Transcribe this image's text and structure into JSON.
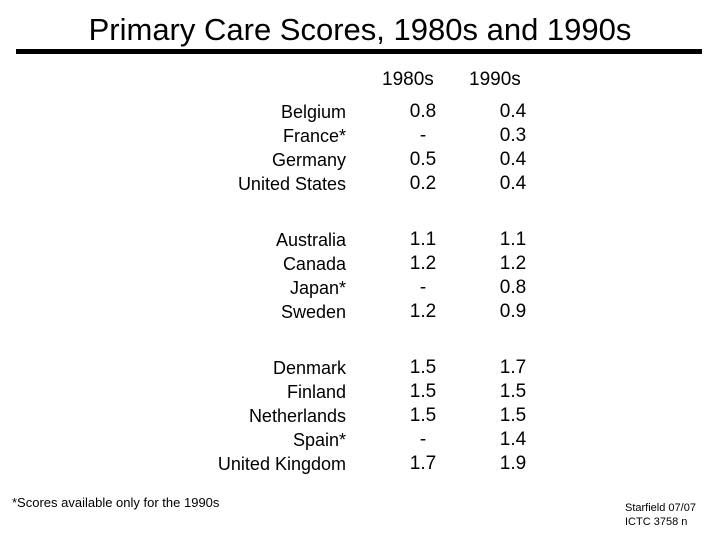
{
  "title": "Primary Care Scores, 1980s and 1990s",
  "columns": [
    "1980s",
    "1990s"
  ],
  "groups": [
    {
      "rows": [
        {
          "country": "Belgium",
          "v1980s": "0.8",
          "v1990s": "0.4"
        },
        {
          "country": "France*",
          "v1980s": "-",
          "v1990s": "0.3"
        },
        {
          "country": "Germany",
          "v1980s": "0.5",
          "v1990s": "0.4"
        },
        {
          "country": "United States",
          "v1980s": "0.2",
          "v1990s": "0.4"
        }
      ]
    },
    {
      "rows": [
        {
          "country": "Australia",
          "v1980s": "1.1",
          "v1990s": "1.1"
        },
        {
          "country": "Canada",
          "v1980s": "1.2",
          "v1990s": "1.2"
        },
        {
          "country": "Japan*",
          "v1980s": "-",
          "v1990s": "0.8"
        },
        {
          "country": "Sweden",
          "v1980s": "1.2",
          "v1990s": "0.9"
        }
      ]
    },
    {
      "rows": [
        {
          "country": "Denmark",
          "v1980s": "1.5",
          "v1990s": "1.7"
        },
        {
          "country": "Finland",
          "v1980s": "1.5",
          "v1990s": "1.5"
        },
        {
          "country": "Netherlands",
          "v1980s": "1.5",
          "v1990s": "1.5"
        },
        {
          "country": "Spain*",
          "v1980s": "-",
          "v1990s": "1.4"
        },
        {
          "country": "United Kingdom",
          "v1980s": "1.7",
          "v1990s": "1.9"
        }
      ]
    }
  ],
  "footnote": "*Scores available only for the 1990s",
  "credit": {
    "line1": "Starfield 07/07",
    "line2": "ICTC 3758 n"
  }
}
